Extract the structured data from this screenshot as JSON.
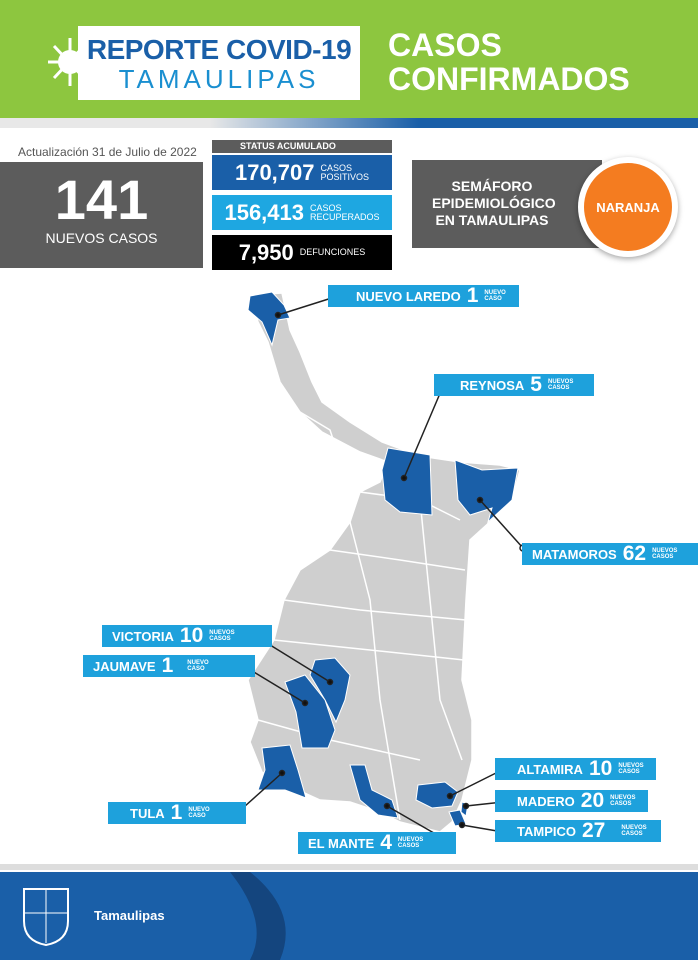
{
  "header": {
    "logo_line1": "REPORTE COVID-19",
    "logo_line2": "TAMAULIPAS",
    "title_line1": "CASOS",
    "title_line2": "CONFIRMADOS"
  },
  "update": "Actualización 31 de Julio de 2022",
  "new_cases": {
    "value": "141",
    "label": "NUEVOS CASOS"
  },
  "status": {
    "title": "STATUS ACUMULADO",
    "positive": {
      "value": "170,707",
      "l1": "CASOS",
      "l2": "POSITIVOS"
    },
    "recovered": {
      "value": "156,413",
      "l1": "CASOS",
      "l2": "RECUPERADOS"
    },
    "deaths": {
      "value": "7,950",
      "l1": "DEFUNCIONES"
    }
  },
  "semaforo": {
    "label": "SEMÁFORO EPIDEMIOLÓGICO EN TAMAULIPAS",
    "level": "NARANJA",
    "color": "#f47c20"
  },
  "municipalities": [
    {
      "name": "NUEVO LAREDO",
      "count": "1",
      "s1": "NUEVO",
      "s2": "CASO"
    },
    {
      "name": "REYNOSA",
      "count": "5",
      "s1": "NUEVOS",
      "s2": "CASOS"
    },
    {
      "name": "MATAMOROS",
      "count": "62",
      "s1": "NUEVOS",
      "s2": "CASOS"
    },
    {
      "name": "VICTORIA",
      "count": "10",
      "s1": "NUEVOS",
      "s2": "CASOS"
    },
    {
      "name": "JAUMAVE",
      "count": "1",
      "s1": "NUEVO",
      "s2": "CASO"
    },
    {
      "name": "TULA",
      "count": "1",
      "s1": "NUEVO",
      "s2": "CASO"
    },
    {
      "name": "EL MANTE",
      "count": "4",
      "s1": "NUEVOS",
      "s2": "CASOS"
    },
    {
      "name": "ALTAMIRA",
      "count": "10",
      "s1": "NUEVOS",
      "s2": "CASOS"
    },
    {
      "name": "MADERO",
      "count": "20",
      "s1": "NUEVOS",
      "s2": "CASOS"
    },
    {
      "name": "TAMPICO",
      "count": "27",
      "s1": "NUEVOS",
      "s2": "CASOS"
    }
  ],
  "colors": {
    "green": "#8dc63f",
    "blue": "#1a5fa8",
    "light_blue": "#1ea1dc",
    "gray": "#5c5c5c",
    "map_gray": "#cfcfcf"
  },
  "footer": {
    "label": "Tamaulipas"
  }
}
